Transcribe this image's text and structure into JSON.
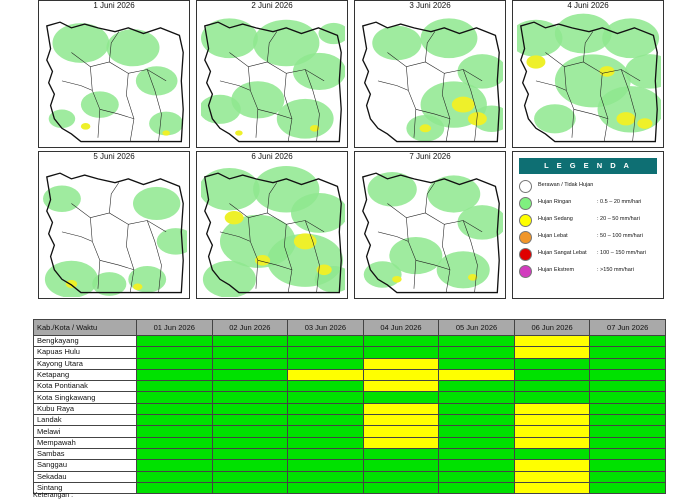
{
  "maps": [
    {
      "title": "1 Juni 2026"
    },
    {
      "title": "2 Juni 2026"
    },
    {
      "title": "3 Juni 2026"
    },
    {
      "title": "4 Juni 2026"
    },
    {
      "title": "5 Juni 2026"
    },
    {
      "title": "6 Juni 2026"
    },
    {
      "title": "7 Juni 2026"
    }
  ],
  "legend": {
    "title": "L E G E N D A",
    "items": [
      {
        "label": "Berawan / Tidak Hujan",
        "range": "",
        "color": "#ffffff"
      },
      {
        "label": "Hujan Ringan",
        "range": ": 0.5 – 20 mm/hari",
        "color": "#7ff07f"
      },
      {
        "label": "Hujan Sedang",
        "range": ": 20 – 50 mm/hari",
        "color": "#ffff00"
      },
      {
        "label": "Hujan Lebat",
        "range": ": 50 – 100 mm/hari",
        "color": "#f0962a"
      },
      {
        "label": "Hujan Sangat Lebat",
        "range": ": 100 – 150 mm/hari",
        "color": "#e00000"
      },
      {
        "label": "Hujan Ekstrem",
        "range": ": >150 mm/hari",
        "color": "#d23cbe"
      }
    ]
  },
  "table": {
    "header_first": "Kab./Kota / Waktu",
    "dates": [
      "01 Jun 2026",
      "02 Jun 2026",
      "03 Jun 2026",
      "04 Jun 2026",
      "05 Jun 2026",
      "06 Jun 2026",
      "07 Jun 2026"
    ],
    "level_colors": {
      "ringan": "#00e100",
      "sedang": "#ffff00"
    },
    "rows": [
      {
        "region": "Bengkayang",
        "levels": [
          "ringan",
          "ringan",
          "ringan",
          "ringan",
          "ringan",
          "sedang",
          "ringan"
        ]
      },
      {
        "region": "Kapuas Hulu",
        "levels": [
          "ringan",
          "ringan",
          "ringan",
          "ringan",
          "ringan",
          "sedang",
          "ringan"
        ]
      },
      {
        "region": "Kayong Utara",
        "levels": [
          "ringan",
          "ringan",
          "ringan",
          "sedang",
          "ringan",
          "ringan",
          "ringan"
        ]
      },
      {
        "region": "Ketapang",
        "levels": [
          "ringan",
          "ringan",
          "sedang",
          "sedang",
          "sedang",
          "ringan",
          "ringan"
        ]
      },
      {
        "region": "Kota Pontianak",
        "levels": [
          "ringan",
          "ringan",
          "ringan",
          "sedang",
          "ringan",
          "ringan",
          "ringan"
        ]
      },
      {
        "region": "Kota Singkawang",
        "levels": [
          "ringan",
          "ringan",
          "ringan",
          "ringan",
          "ringan",
          "ringan",
          "ringan"
        ]
      },
      {
        "region": "Kubu Raya",
        "levels": [
          "ringan",
          "ringan",
          "ringan",
          "sedang",
          "ringan",
          "sedang",
          "ringan"
        ]
      },
      {
        "region": "Landak",
        "levels": [
          "ringan",
          "ringan",
          "ringan",
          "sedang",
          "ringan",
          "sedang",
          "ringan"
        ]
      },
      {
        "region": "Melawi",
        "levels": [
          "ringan",
          "ringan",
          "ringan",
          "sedang",
          "ringan",
          "sedang",
          "ringan"
        ]
      },
      {
        "region": "Mempawah",
        "levels": [
          "ringan",
          "ringan",
          "ringan",
          "sedang",
          "ringan",
          "sedang",
          "ringan"
        ]
      },
      {
        "region": "Sambas",
        "levels": [
          "ringan",
          "ringan",
          "ringan",
          "ringan",
          "ringan",
          "ringan",
          "ringan"
        ]
      },
      {
        "region": "Sanggau",
        "levels": [
          "ringan",
          "ringan",
          "ringan",
          "ringan",
          "ringan",
          "sedang",
          "ringan"
        ]
      },
      {
        "region": "Sekadau",
        "levels": [
          "ringan",
          "ringan",
          "ringan",
          "ringan",
          "ringan",
          "sedang",
          "ringan"
        ]
      },
      {
        "region": "Sintang",
        "levels": [
          "ringan",
          "ringan",
          "ringan",
          "ringan",
          "ringan",
          "sedang",
          "ringan"
        ]
      }
    ]
  },
  "footer": {
    "label": "Keterangan :"
  }
}
